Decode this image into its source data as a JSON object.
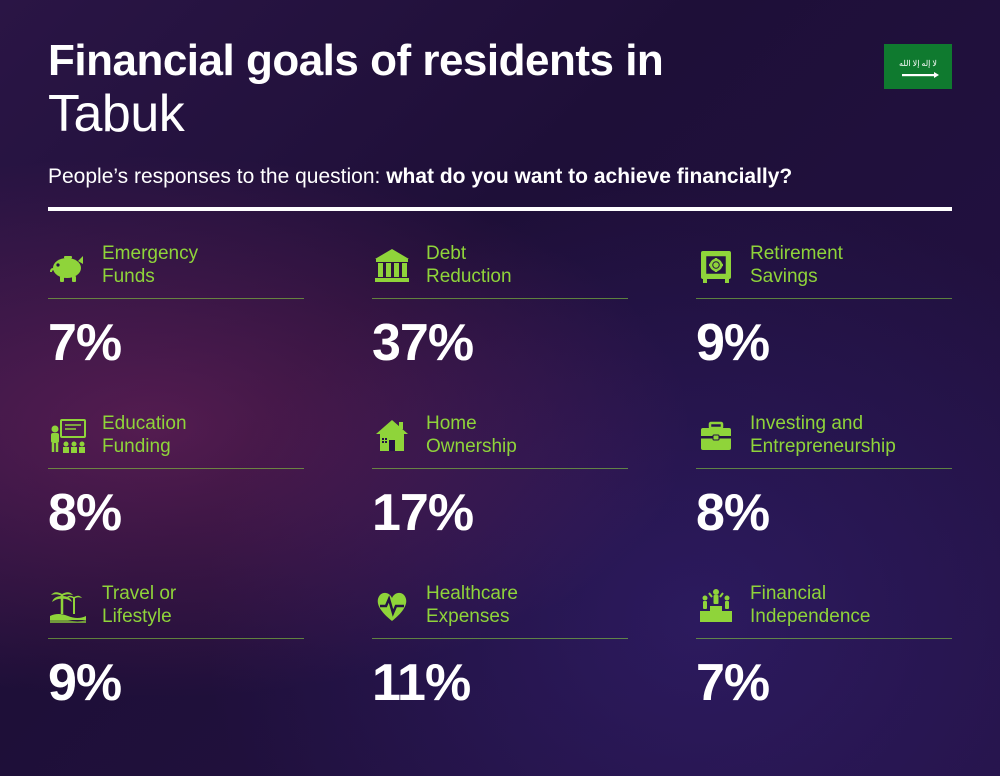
{
  "type": "infographic",
  "background_color": "#241245",
  "accent_color": "#8fd43a",
  "text_color": "#ffffff",
  "header": {
    "title_line1": "Financial goals of residents in",
    "title_line2": "Tabuk",
    "title_line1_fontsize": 44,
    "title_line1_weight": 800,
    "title_line2_fontsize": 52,
    "title_line2_weight": 300,
    "subtitle_prefix": "People’s responses to the question: ",
    "subtitle_question": "what do you want to achieve financially?",
    "subtitle_fontsize": 21,
    "flag": {
      "bg": "#0f7a2f",
      "emblem_color": "#ffffff"
    }
  },
  "divider": {
    "color": "#ffffff",
    "height": 4
  },
  "grid": {
    "columns": 3,
    "col_gap": 68,
    "row_gap": 40
  },
  "cards": [
    {
      "icon": "piggy-bank-icon",
      "label": "Emergency\nFunds",
      "value": "7%"
    },
    {
      "icon": "bank-icon",
      "label": "Debt\nReduction",
      "value": "37%"
    },
    {
      "icon": "safe-icon",
      "label": "Retirement\nSavings",
      "value": "9%"
    },
    {
      "icon": "education-icon",
      "label": "Education\nFunding",
      "value": "8%"
    },
    {
      "icon": "house-icon",
      "label": "Home\nOwnership",
      "value": "17%"
    },
    {
      "icon": "briefcase-icon",
      "label": "Investing and\nEntrepreneurship",
      "value": "8%"
    },
    {
      "icon": "palm-icon",
      "label": "Travel or\nLifestyle",
      "value": "9%"
    },
    {
      "icon": "heart-pulse-icon",
      "label": "Healthcare\nExpenses",
      "value": "11%"
    },
    {
      "icon": "podium-icon",
      "label": "Financial\nIndependence",
      "value": "7%"
    }
  ],
  "card_style": {
    "label_fontsize": 19,
    "label_color": "#8fd43a",
    "value_fontsize": 52,
    "value_weight": 800,
    "value_color": "#ffffff",
    "underline_color": "rgba(140,220,60,0.55)",
    "icon_color": "#8fd43a",
    "icon_size": 40
  }
}
